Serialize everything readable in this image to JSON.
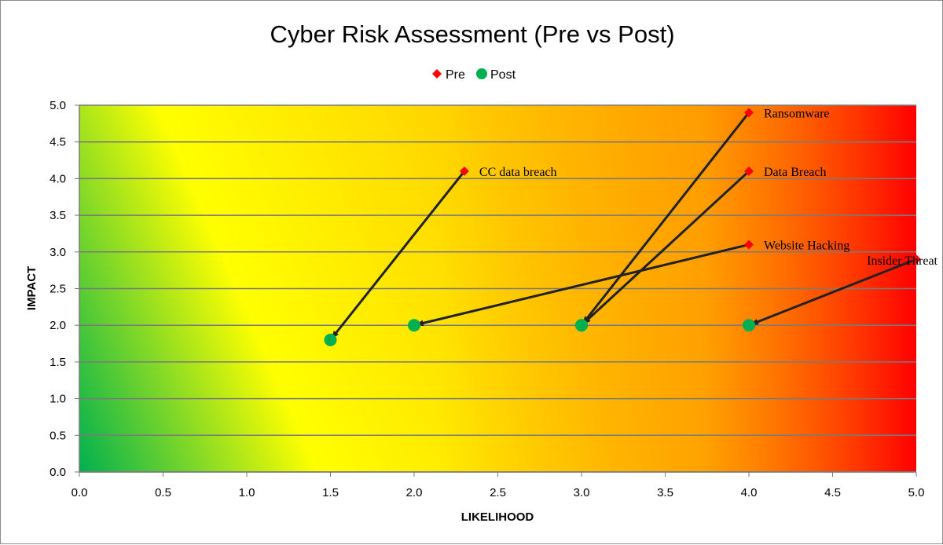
{
  "chart_data": {
    "type": "scatter",
    "title": "Cyber Risk Assessment (Pre vs Post)",
    "xlabel": "LIKELIHOOD",
    "ylabel": "IMPACT",
    "xlim": [
      0,
      5
    ],
    "ylim": [
      0,
      5
    ],
    "x_ticks": [
      "0.0",
      "0.5",
      "1.0",
      "1.5",
      "2.0",
      "2.5",
      "3.0",
      "3.5",
      "4.0",
      "4.5",
      "5.0"
    ],
    "y_ticks": [
      "0.0",
      "0.5",
      "1.0",
      "1.5",
      "2.0",
      "2.5",
      "3.0",
      "3.5",
      "4.0",
      "4.5",
      "5.0"
    ],
    "grid": "horizontal",
    "legend_position": "top-center",
    "background": "gradient green (low-left) to yellow to orange to red (top-right)",
    "series": [
      {
        "name": "Pre",
        "marker": "diamond",
        "color": "#ff0000",
        "points": [
          {
            "label": "CC data breach",
            "x": 2.3,
            "y": 4.1
          },
          {
            "label": "Ransomware",
            "x": 4.0,
            "y": 4.9
          },
          {
            "label": "Data Breach",
            "x": 4.0,
            "y": 4.1
          },
          {
            "label": "Website Hacking",
            "x": 4.0,
            "y": 3.1
          },
          {
            "label": "Insider Threat",
            "x": 5.0,
            "y": 2.9
          }
        ]
      },
      {
        "name": "Post",
        "marker": "circle",
        "color": "#00b050",
        "points": [
          {
            "x": 1.5,
            "y": 1.8
          },
          {
            "x": 3.0,
            "y": 2.0
          },
          {
            "x": 3.0,
            "y": 2.0
          },
          {
            "x": 2.0,
            "y": 2.0
          },
          {
            "x": 4.0,
            "y": 2.0
          }
        ]
      }
    ],
    "arrows": [
      {
        "from": [
          2.3,
          4.1
        ],
        "to": [
          1.5,
          1.8
        ]
      },
      {
        "from": [
          4.0,
          4.9
        ],
        "to": [
          3.0,
          2.0
        ]
      },
      {
        "from": [
          4.0,
          4.1
        ],
        "to": [
          3.0,
          2.0
        ]
      },
      {
        "from": [
          4.0,
          3.1
        ],
        "to": [
          2.0,
          2.0
        ]
      },
      {
        "from": [
          5.0,
          2.9
        ],
        "to": [
          4.0,
          2.0
        ]
      }
    ]
  }
}
